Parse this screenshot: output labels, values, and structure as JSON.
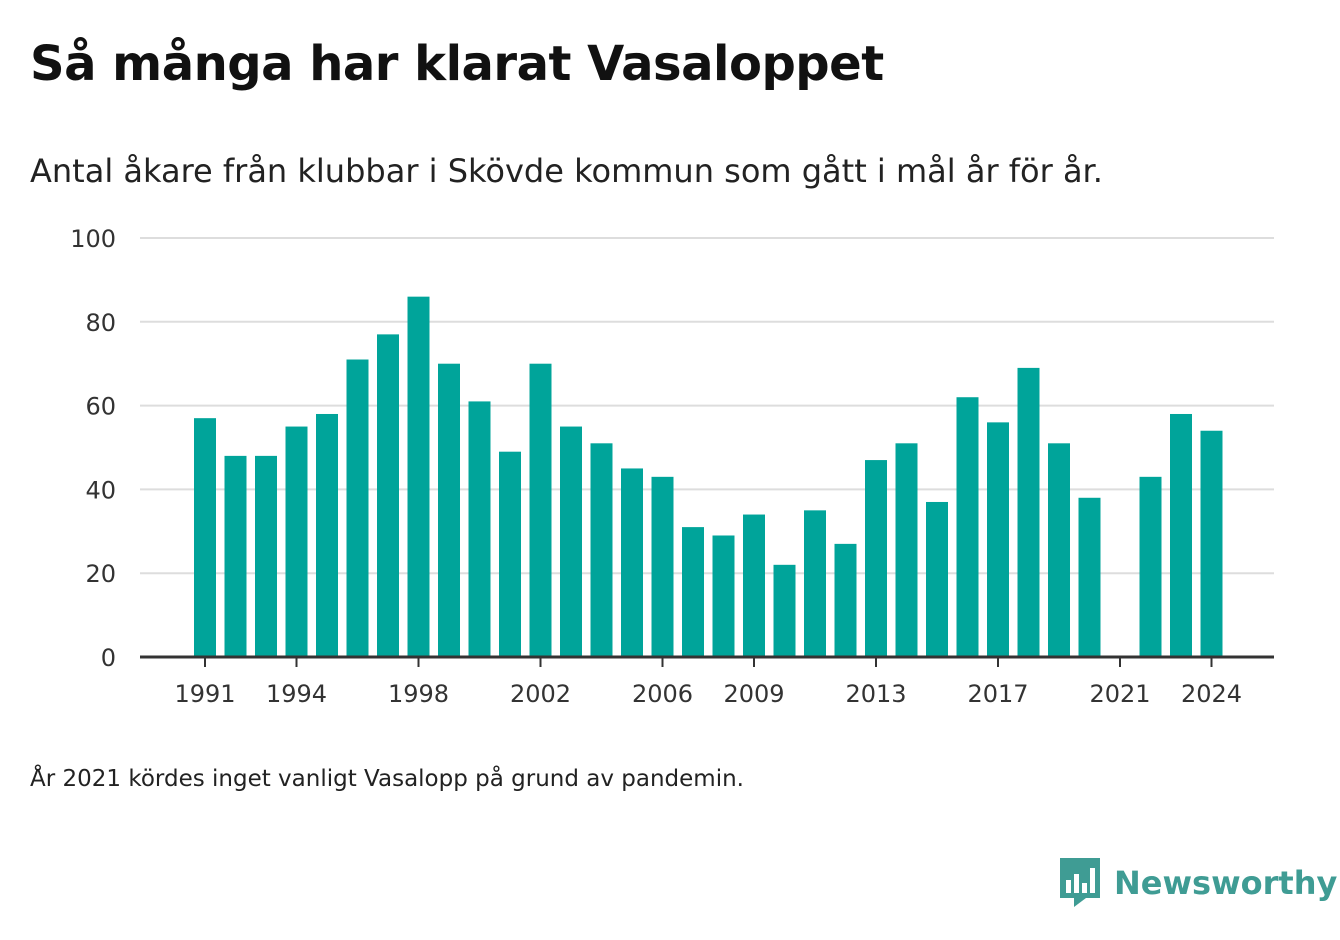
{
  "header": {
    "title": "Så många har klarat Vasaloppet",
    "subtitle": "Antal åkare från klubbar i Skövde kommun som gått i mål år för år."
  },
  "footer": {
    "note": "År 2021 kördes inget vanligt Vasalopp på grund av pandemin.",
    "brand_name": "Newsworthy",
    "brand_icon": "newsworthy-logo-icon"
  },
  "colors": {
    "bar": "#00a49a",
    "grid": "#dddddd",
    "axis": "#333333",
    "brand": "#3f9c94"
  },
  "chart_data": {
    "type": "bar",
    "title": "Så många har klarat Vasaloppet",
    "subtitle": "Antal åkare från klubbar i Skövde kommun som gått i mål år för år.",
    "xlabel": "",
    "ylabel": "",
    "categories": [
      1991,
      1992,
      1993,
      1994,
      1995,
      1996,
      1997,
      1998,
      1999,
      2000,
      2001,
      2002,
      2003,
      2004,
      2005,
      2006,
      2007,
      2008,
      2009,
      2010,
      2011,
      2012,
      2013,
      2014,
      2015,
      2016,
      2017,
      2018,
      2019,
      2020,
      2021,
      2022,
      2023,
      2024
    ],
    "values": [
      57,
      48,
      48,
      55,
      58,
      71,
      77,
      86,
      70,
      61,
      49,
      70,
      55,
      51,
      45,
      43,
      31,
      29,
      34,
      22,
      35,
      27,
      47,
      51,
      37,
      62,
      56,
      69,
      51,
      38,
      null,
      43,
      58,
      54
    ],
    "ylim": [
      0,
      100
    ],
    "yticks": [
      0,
      20,
      40,
      60,
      80,
      100
    ],
    "xticks": [
      1991,
      1994,
      1998,
      2002,
      2006,
      2009,
      2013,
      2017,
      2021,
      2024
    ],
    "grid": true,
    "legend": "none"
  }
}
